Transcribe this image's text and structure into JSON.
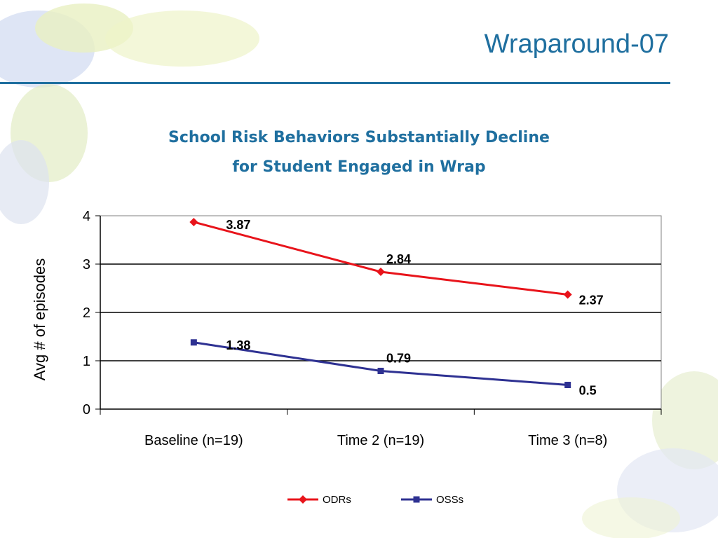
{
  "slide": {
    "title": "Wraparound-07"
  },
  "chart_data": {
    "type": "line",
    "title_lines": [
      "School Risk Behaviors Substantially Decline",
      "for Student Engaged in Wrap"
    ],
    "ylabel": "Avg # of episodes",
    "ylim": [
      0,
      4
    ],
    "yticks": [
      "0",
      "1",
      "2",
      "3",
      "4"
    ],
    "categories": [
      "Baseline (n=19)",
      "Time 2 (n=19)",
      "Time 3 (n=8)"
    ],
    "grid": true,
    "legend_position": "bottom",
    "series": [
      {
        "name": "ODRs",
        "values": [
          3.87,
          2.84,
          2.37
        ],
        "labels": [
          "3.87",
          "2.84",
          "2.37"
        ],
        "color": "#e8141b",
        "marker": "diamond"
      },
      {
        "name": "OSSs",
        "values": [
          1.38,
          0.79,
          0.5
        ],
        "labels": [
          "1.38",
          "0.79",
          "0.5"
        ],
        "color": "#2e3192",
        "marker": "square"
      }
    ]
  }
}
